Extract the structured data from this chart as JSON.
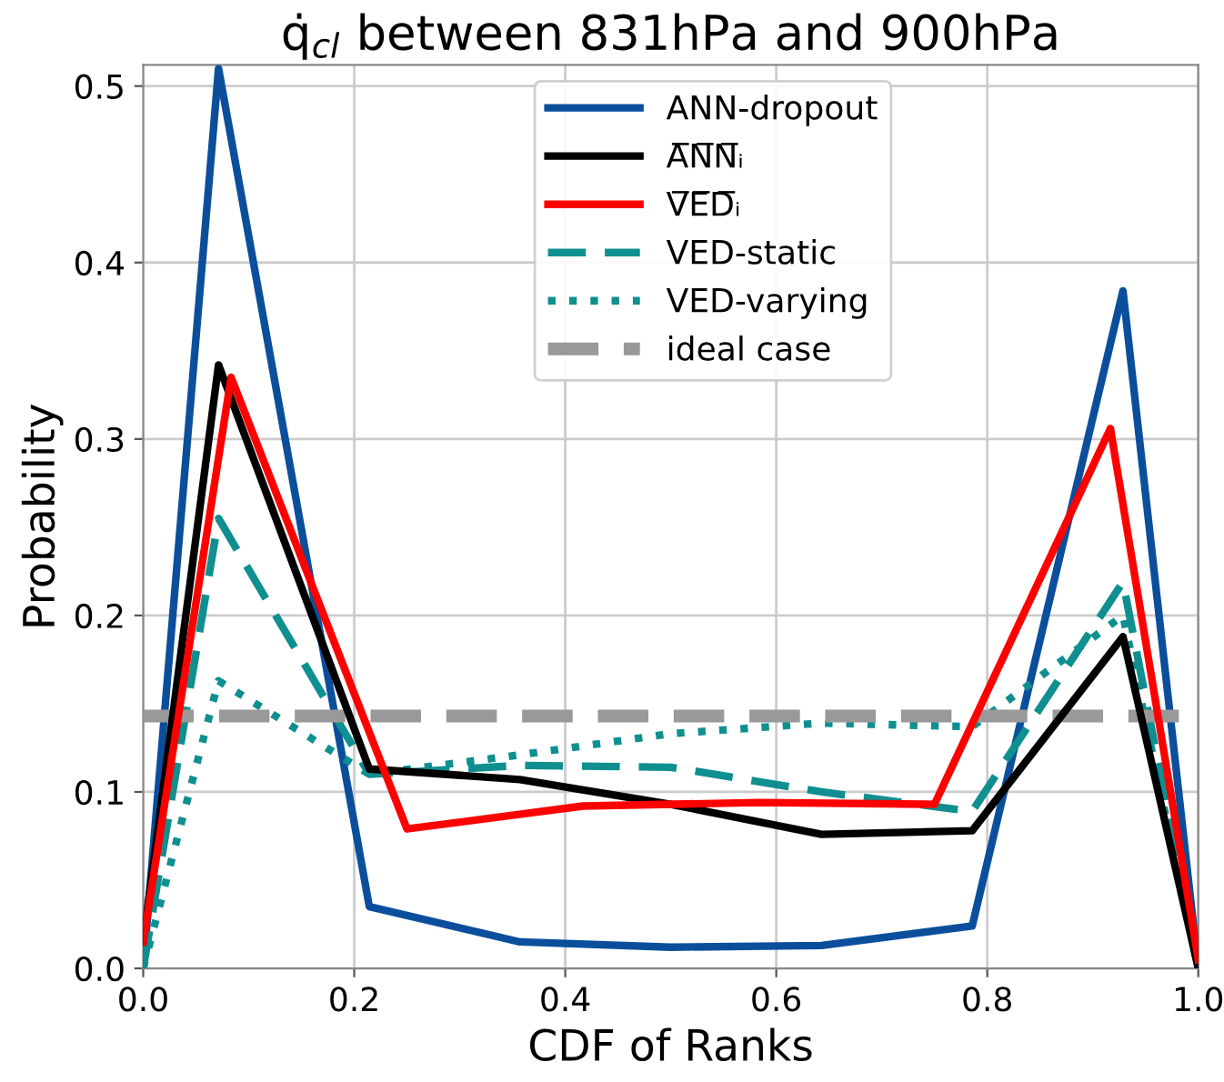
{
  "chart_data": {
    "type": "line",
    "title": "q̇$_{cl}$ between 831hPa and 900hPa",
    "xlabel": "CDF of Ranks",
    "ylabel": "Probability",
    "xlim": [
      0,
      1
    ],
    "ylim": [
      0,
      0.512
    ],
    "xticks": [
      {
        "value": 0,
        "label": "0.0"
      },
      {
        "value": 0.2,
        "label": "0.2"
      },
      {
        "value": 0.4,
        "label": "0.4"
      },
      {
        "value": 0.6,
        "label": "0.6"
      },
      {
        "value": 0.8,
        "label": "0.8"
      },
      {
        "value": 1,
        "label": "1.0"
      }
    ],
    "yticks": [
      {
        "value": 0,
        "label": "0.0"
      },
      {
        "value": 0.1,
        "label": "0.1"
      },
      {
        "value": 0.2,
        "label": "0.2"
      },
      {
        "value": 0.3,
        "label": "0.3"
      },
      {
        "value": 0.4,
        "label": "0.4"
      },
      {
        "value": 0.5,
        "label": "0.5"
      }
    ],
    "grid": true,
    "legend": "top",
    "marker": "none",
    "series": [
      {
        "name": "ANN-dropout",
        "color": "#0b4f9c",
        "line_style": "solid",
        "x": [
          0,
          0.0714,
          0.2143,
          0.3571,
          0.5,
          0.6429,
          0.7857,
          0.9286,
          1
        ],
        "values": [
          0.0,
          0.51,
          0.035,
          0.015,
          0.012,
          0.013,
          0.024,
          0.384,
          0.0
        ]
      },
      {
        "name": "A̅N̅N̅ᵢ",
        "color": "#000000",
        "line_style": "solid",
        "x": [
          0,
          0.0714,
          0.2143,
          0.3571,
          0.5,
          0.6429,
          0.7857,
          0.9286,
          1
        ],
        "values": [
          0.015,
          0.342,
          0.113,
          0.107,
          0.093,
          0.076,
          0.078,
          0.188,
          0.0
        ]
      },
      {
        "name": "V̅E̅D̅ᵢ",
        "color": "#ff0000",
        "line_style": "solid",
        "x": [
          0,
          0.0833,
          0.25,
          0.4167,
          0.5833,
          0.75,
          0.9167,
          1
        ],
        "values": [
          0.015,
          0.335,
          0.079,
          0.092,
          0.094,
          0.093,
          0.306,
          0.005
        ]
      },
      {
        "name": "VED-static",
        "color": "#0f8f8f",
        "line_style": "dashed",
        "x": [
          0,
          0.0714,
          0.2143,
          0.3571,
          0.5,
          0.6429,
          0.7857,
          0.9286,
          1
        ],
        "values": [
          0.0,
          0.255,
          0.11,
          0.115,
          0.114,
          0.1,
          0.089,
          0.219,
          0.0
        ]
      },
      {
        "name": "VED-varying",
        "color": "#0f8f8f",
        "line_style": "dotted",
        "x": [
          0,
          0.0714,
          0.2143,
          0.3571,
          0.5,
          0.6429,
          0.7857,
          0.9286,
          1
        ],
        "values": [
          0.0,
          0.163,
          0.11,
          0.121,
          0.133,
          0.139,
          0.137,
          0.2,
          0.0
        ]
      },
      {
        "name": "ideal case",
        "color": "#999999",
        "line_style": "dashed",
        "x": [
          0,
          1
        ],
        "values": [
          0.143,
          0.143
        ]
      }
    ]
  }
}
